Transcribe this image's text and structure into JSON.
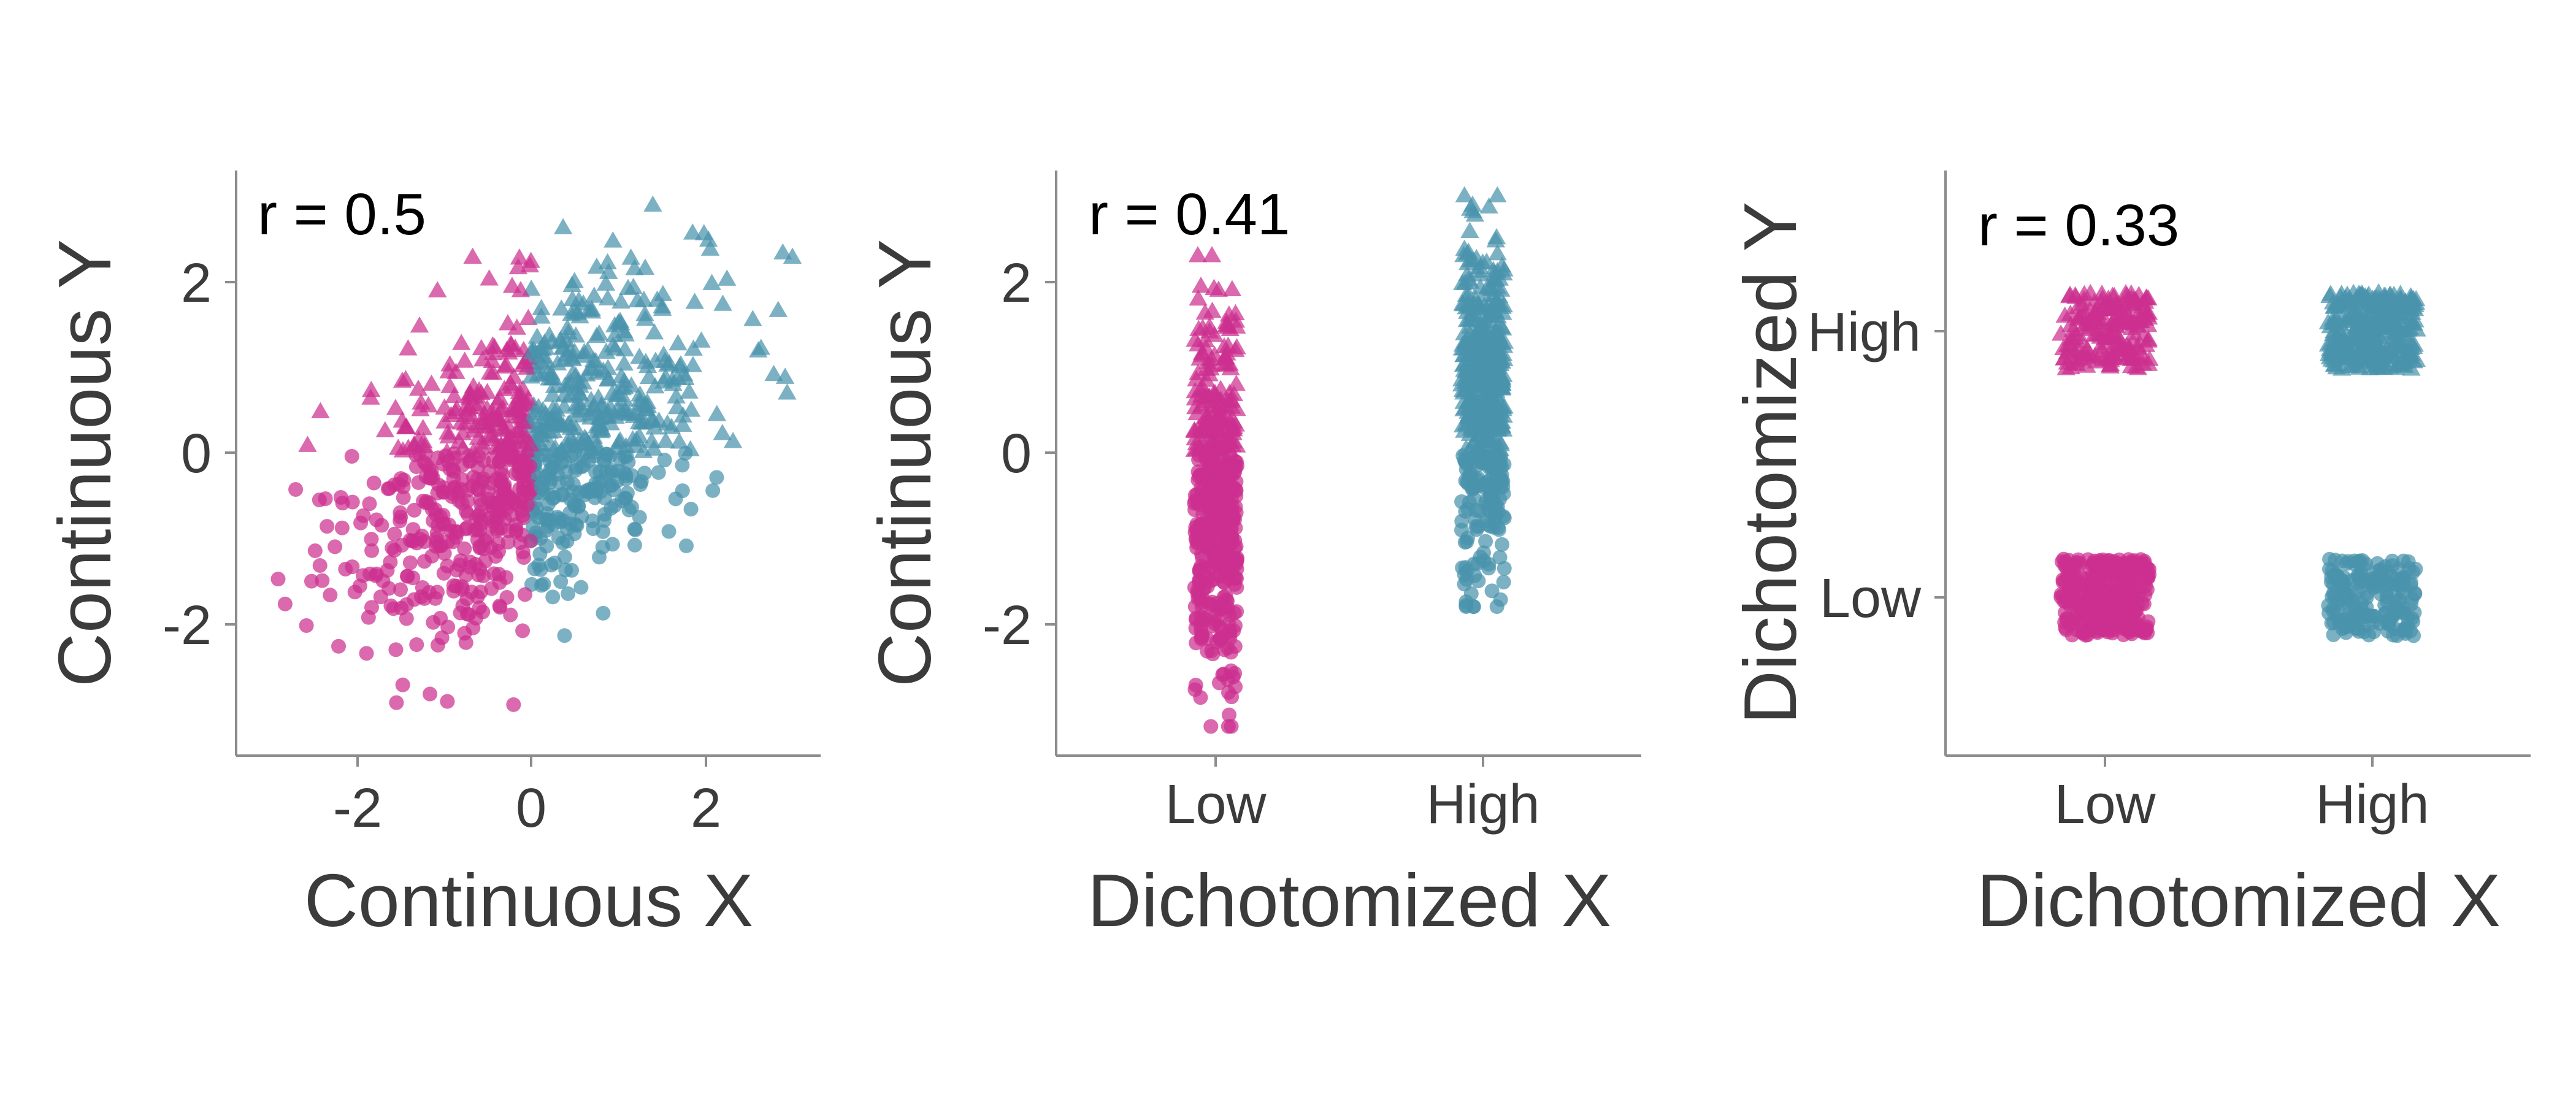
{
  "colors": {
    "low": "#cc2f8f",
    "high": "#4a93ac"
  },
  "chart_data": [
    {
      "type": "scatter",
      "panel": "continuous-continuous",
      "annotation": "r = 0.5",
      "xlabel": "Continuous X",
      "ylabel": "Continuous Y",
      "xlim": [
        -3.4,
        3.3
      ],
      "ylim": [
        -3.5,
        3.3
      ],
      "xticks": [
        {
          "value": -2,
          "label": "-2"
        },
        {
          "value": 0,
          "label": "0"
        },
        {
          "value": 2,
          "label": "2"
        }
      ],
      "yticks": [
        {
          "value": -2,
          "label": "-2"
        },
        {
          "value": 0,
          "label": "0"
        },
        {
          "value": 2,
          "label": "2"
        }
      ],
      "grid": false,
      "series": [
        {
          "group": "low",
          "color": "#cc2f8f",
          "n": 500,
          "x_range": [
            -3.1,
            0
          ],
          "correlation": 0.5
        },
        {
          "group": "high",
          "color": "#4a93ac",
          "n": 500,
          "x_range": [
            0,
            3.0
          ],
          "correlation": 0.5
        }
      ]
    },
    {
      "type": "scatter",
      "panel": "dichotomized-x",
      "annotation": "r = 0.41",
      "xlabel": "Dichotomized X",
      "ylabel": "Continuous Y",
      "categories": [
        "Low",
        "High"
      ],
      "ylim": [
        -3.5,
        3.3
      ],
      "yticks": [
        {
          "value": -2,
          "label": "-2"
        },
        {
          "value": 0,
          "label": "0"
        },
        {
          "value": 2,
          "label": "2"
        }
      ],
      "grid": false,
      "series": [
        {
          "group": "low",
          "category": "Low",
          "color": "#cc2f8f",
          "n": 500,
          "y_range": [
            -3.2,
            2.3
          ]
        },
        {
          "group": "high",
          "category": "High",
          "color": "#4a93ac",
          "n": 500,
          "y_range": [
            -1.8,
            3.0
          ]
        }
      ]
    },
    {
      "type": "scatter",
      "panel": "dichotomized-both",
      "annotation": "r = 0.33",
      "xlabel": "Dichotomized X",
      "ylabel": "Dichotomized Y",
      "categories": [
        "Low",
        "High"
      ],
      "ycategories": [
        "Low",
        "High"
      ],
      "grid": false,
      "cells": [
        {
          "x": "Low",
          "y": "High",
          "group": "low",
          "marker": "triangle",
          "n": 180
        },
        {
          "x": "High",
          "y": "High",
          "group": "high",
          "marker": "triangle",
          "n": 320
        },
        {
          "x": "Low",
          "y": "Low",
          "group": "low",
          "marker": "circle",
          "n": 320
        },
        {
          "x": "High",
          "y": "Low",
          "group": "high",
          "marker": "circle",
          "n": 180
        }
      ]
    }
  ]
}
